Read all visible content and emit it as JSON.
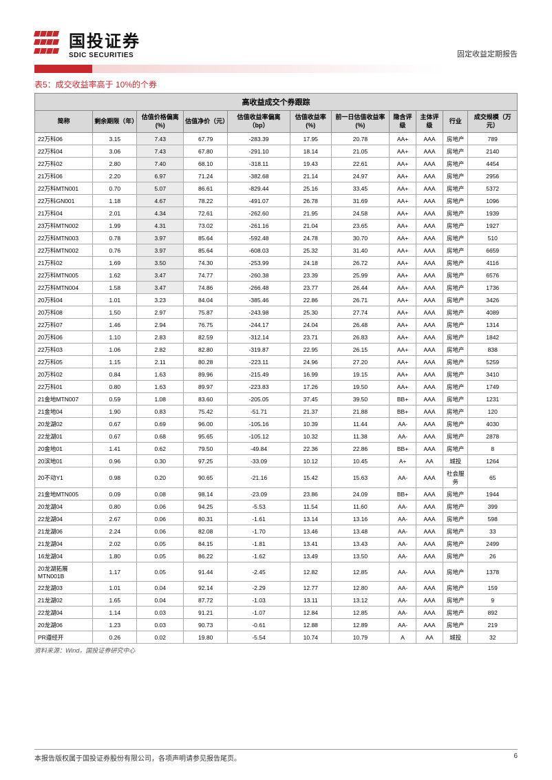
{
  "header": {
    "logo_cn": "国投证券",
    "logo_en": "SDIC SECURITIES",
    "doc_type": "固定收益定期报告"
  },
  "caption": "表5：成交收益率高于 10%的个券",
  "table": {
    "title": "高收益成交个券跟踪",
    "columns": [
      "简称",
      "剩余期限（年）",
      "估值价格偏离(%)",
      "估值净价（元）",
      "估值收益率偏离（bp）",
      "估值收益率(%)",
      "前一日估值收益率(%)",
      "隐含评级",
      "主体评级",
      "行业",
      "成交规模（万元）"
    ],
    "rows": [
      [
        "22万科06",
        "3.15",
        "7.43",
        "67.79",
        "-283.39",
        "17.95",
        "20.78",
        "AA+",
        "AAA",
        "房地产",
        "789"
      ],
      [
        "22万科04",
        "3.06",
        "7.43",
        "67.80",
        "-291.10",
        "18.14",
        "21.05",
        "AA+",
        "AAA",
        "房地产",
        "2140"
      ],
      [
        "22万科02",
        "2.80",
        "7.40",
        "68.10",
        "-318.11",
        "19.43",
        "22.61",
        "AA+",
        "AAA",
        "房地产",
        "4454"
      ],
      [
        "21万科06",
        "2.20",
        "6.97",
        "71.24",
        "-382.68",
        "21.14",
        "24.97",
        "AA+",
        "AAA",
        "房地产",
        "2956"
      ],
      [
        "22万科MTN001",
        "0.70",
        "5.07",
        "86.61",
        "-829.44",
        "25.16",
        "33.45",
        "AA+",
        "AAA",
        "房地产",
        "5372"
      ],
      [
        "22万科GN001",
        "1.18",
        "4.67",
        "78.22",
        "-491.07",
        "26.78",
        "31.69",
        "AA+",
        "AAA",
        "房地产",
        "1096"
      ],
      [
        "21万科04",
        "2.01",
        "4.34",
        "72.61",
        "-262.60",
        "21.95",
        "24.58",
        "AA+",
        "AAA",
        "房地产",
        "1939"
      ],
      [
        "23万科MTN002",
        "1.99",
        "4.31",
        "73.02",
        "-261.16",
        "21.04",
        "23.65",
        "AA+",
        "AAA",
        "房地产",
        "1927"
      ],
      [
        "22万科MTN003",
        "0.78",
        "3.97",
        "85.64",
        "-592.48",
        "24.78",
        "30.70",
        "AA+",
        "AAA",
        "房地产",
        "510"
      ],
      [
        "22万科MTN002",
        "0.76",
        "3.97",
        "85.64",
        "-608.03",
        "25.32",
        "31.40",
        "AA+",
        "AAA",
        "房地产",
        "6659"
      ],
      [
        "21万科02",
        "1.69",
        "3.50",
        "74.30",
        "-253.99",
        "24.18",
        "26.72",
        "AA+",
        "AAA",
        "房地产",
        "4116"
      ],
      [
        "22万科MTN005",
        "1.62",
        "3.47",
        "74.77",
        "-260.38",
        "23.39",
        "25.99",
        "AA+",
        "AAA",
        "房地产",
        "6576"
      ],
      [
        "22万科MTN004",
        "1.58",
        "3.47",
        "74.86",
        "-266.48",
        "23.77",
        "26.44",
        "AA+",
        "AAA",
        "房地产",
        "1736"
      ],
      [
        "20万科04",
        "1.01",
        "3.23",
        "84.04",
        "-385.46",
        "22.86",
        "26.71",
        "AA+",
        "AAA",
        "房地产",
        "3426"
      ],
      [
        "20万科08",
        "1.50",
        "2.97",
        "75.87",
        "-243.98",
        "25.30",
        "27.74",
        "AA+",
        "AAA",
        "房地产",
        "4089"
      ],
      [
        "22万科07",
        "1.46",
        "2.94",
        "76.75",
        "-244.17",
        "24.04",
        "26.48",
        "AA+",
        "AAA",
        "房地产",
        "1314"
      ],
      [
        "20万科06",
        "1.10",
        "2.83",
        "82.59",
        "-312.14",
        "23.71",
        "26.83",
        "AA+",
        "AAA",
        "房地产",
        "1842"
      ],
      [
        "22万科03",
        "1.06",
        "2.82",
        "82.80",
        "-319.87",
        "22.95",
        "26.15",
        "AA+",
        "AAA",
        "房地产",
        "838"
      ],
      [
        "22万科05",
        "1.15",
        "2.11",
        "80.28",
        "-223.11",
        "24.96",
        "27.20",
        "AA+",
        "AAA",
        "房地产",
        "5259"
      ],
      [
        "20万科02",
        "0.84",
        "1.63",
        "89.96",
        "-215.49",
        "16.99",
        "19.15",
        "AA+",
        "AAA",
        "房地产",
        "3410"
      ],
      [
        "22万科01",
        "0.80",
        "1.63",
        "89.97",
        "-223.83",
        "17.26",
        "19.50",
        "AA+",
        "AAA",
        "房地产",
        "1749"
      ],
      [
        "21金地MTN007",
        "0.59",
        "1.08",
        "83.60",
        "-205.05",
        "37.45",
        "39.50",
        "BB+",
        "AAA",
        "房地产",
        "1231"
      ],
      [
        "21金地04",
        "1.90",
        "0.83",
        "75.42",
        "-51.71",
        "21.37",
        "21.88",
        "BB+",
        "AAA",
        "房地产",
        "120"
      ],
      [
        "20龙湖02",
        "0.67",
        "0.69",
        "96.00",
        "-105.16",
        "10.39",
        "11.44",
        "AA-",
        "AAA",
        "房地产",
        "4030"
      ],
      [
        "22龙湖01",
        "0.67",
        "0.68",
        "95.65",
        "-105.12",
        "10.32",
        "11.38",
        "AA-",
        "AAA",
        "房地产",
        "2878"
      ],
      [
        "20金地01",
        "1.41",
        "0.62",
        "79.50",
        "-49.84",
        "22.36",
        "22.86",
        "BB+",
        "AAA",
        "房地产",
        "8"
      ],
      [
        "20滨地01",
        "0.96",
        "0.30",
        "97.25",
        "-33.09",
        "10.12",
        "10.45",
        "A+",
        "AA",
        "城投",
        "1264"
      ],
      [
        "20不动Y1",
        "0.98",
        "0.20",
        "90.65",
        "-21.16",
        "15.42",
        "15.63",
        "AA-",
        "AAA",
        "社会服务",
        "65"
      ],
      [
        "21金地MTN005",
        "0.09",
        "0.08",
        "98.14",
        "-23.09",
        "23.86",
        "24.09",
        "BB+",
        "AAA",
        "房地产",
        "1944"
      ],
      [
        "20龙湖04",
        "0.80",
        "0.06",
        "94.25",
        "-5.53",
        "11.54",
        "11.60",
        "AA-",
        "AAA",
        "房地产",
        "399"
      ],
      [
        "22龙湖04",
        "2.67",
        "0.06",
        "80.31",
        "-1.61",
        "13.14",
        "13.16",
        "AA-",
        "AAA",
        "房地产",
        "598"
      ],
      [
        "21龙湖06",
        "2.24",
        "0.06",
        "82.08",
        "-1.70",
        "13.46",
        "13.48",
        "AA-",
        "AAA",
        "房地产",
        "33"
      ],
      [
        "21龙湖04",
        "2.02",
        "0.05",
        "84.15",
        "-1.81",
        "13.41",
        "13.43",
        "AA-",
        "AAA",
        "房地产",
        "2499"
      ],
      [
        "16龙湖04",
        "1.80",
        "0.05",
        "86.22",
        "-1.62",
        "13.49",
        "13.50",
        "AA-",
        "AAA",
        "房地产",
        "26"
      ],
      [
        "20龙湖拓展MTN001B",
        "1.17",
        "0.05",
        "91.44",
        "-2.45",
        "12.82",
        "12.85",
        "AA-",
        "AAA",
        "房地产",
        "1378"
      ],
      [
        "22龙湖03",
        "1.01",
        "0.04",
        "92.14",
        "-2.29",
        "12.77",
        "12.80",
        "AA-",
        "AAA",
        "房地产",
        "159"
      ],
      [
        "21龙湖02",
        "1.65",
        "0.04",
        "87.72",
        "-1.03",
        "13.11",
        "13.12",
        "AA-",
        "AAA",
        "房地产",
        "9"
      ],
      [
        "22龙湖04",
        "1.14",
        "0.03",
        "91.21",
        "-1.07",
        "12.84",
        "12.85",
        "AA-",
        "AAA",
        "房地产",
        "892"
      ],
      [
        "20龙湖06",
        "1.23",
        "0.03",
        "90.73",
        "-0.61",
        "12.88",
        "12.89",
        "AA-",
        "AAA",
        "房地产",
        "219"
      ],
      [
        "PR遵经开",
        "0.26",
        "0.02",
        "19.80",
        "-5.54",
        "10.74",
        "10.79",
        "A",
        "AA",
        "城投",
        "32"
      ]
    ],
    "shade_cutoff": 13
  },
  "source": "资料来源：Wind，国投证券研究中心",
  "footer": {
    "text": "本报告版权属于国投证券股份有限公司，各项声明请参见报告尾页。",
    "page": "6"
  }
}
